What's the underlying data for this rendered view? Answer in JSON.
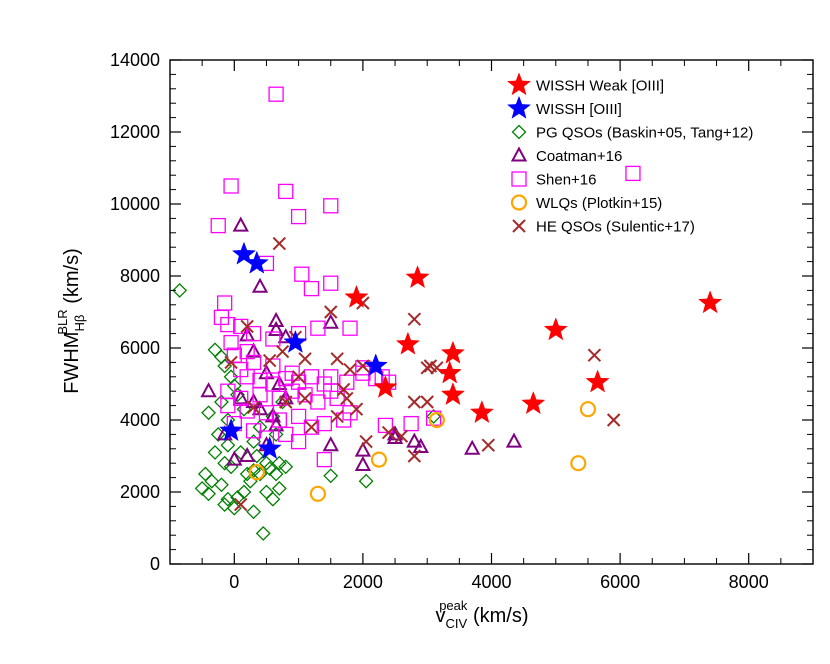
{
  "chart_data": {
    "type": "scatter",
    "title": "",
    "xlabel": {
      "main": "v",
      "sub": "CIV",
      "sup": "peak",
      "unit": " (km/s)"
    },
    "ylabel": {
      "main": "FWHM",
      "sub": "Hβ",
      "sup": "BLR",
      "unit": " (km/s)"
    },
    "xlim": [
      -1000,
      9000
    ],
    "ylim": [
      0,
      14000
    ],
    "xticks": [
      0,
      2000,
      4000,
      6000,
      8000
    ],
    "yticks": [
      0,
      2000,
      4000,
      6000,
      8000,
      10000,
      12000,
      14000
    ],
    "legend_position": "top-right",
    "series": [
      {
        "name": "WISSH Weak [OIII]",
        "marker": "star",
        "color": "#ff0000",
        "filled": true,
        "points": [
          [
            1900,
            7400
          ],
          [
            2850,
            7950
          ],
          [
            2700,
            6100
          ],
          [
            2350,
            4900
          ],
          [
            3400,
            5850
          ],
          [
            3350,
            5300
          ],
          [
            3400,
            4700
          ],
          [
            3850,
            4200
          ],
          [
            4650,
            4450
          ],
          [
            5000,
            6500
          ],
          [
            5650,
            5050
          ],
          [
            7400,
            7250
          ]
        ]
      },
      {
        "name": "WISSH [OIII]",
        "marker": "star",
        "color": "#0000ff",
        "filled": true,
        "points": [
          [
            150,
            8600
          ],
          [
            350,
            8350
          ],
          [
            950,
            6150
          ],
          [
            2200,
            5500
          ],
          [
            -50,
            3700
          ],
          [
            550,
            3200
          ]
        ]
      },
      {
        "name": "PG QSOs (Baskin+05, Tang+12)",
        "marker": "diamond",
        "color": "#008000",
        "filled": false,
        "points": [
          [
            -850,
            7600
          ],
          [
            -300,
            5950
          ],
          [
            -200,
            5750
          ],
          [
            -150,
            5500
          ],
          [
            -50,
            5200
          ],
          [
            0,
            4950
          ],
          [
            50,
            4700
          ],
          [
            -200,
            4500
          ],
          [
            -400,
            4200
          ],
          [
            -250,
            3600
          ],
          [
            -100,
            3300
          ],
          [
            -300,
            3100
          ],
          [
            -150,
            2800
          ],
          [
            -50,
            2700
          ],
          [
            -450,
            2500
          ],
          [
            -350,
            2300
          ],
          [
            -200,
            2200
          ],
          [
            -500,
            2100
          ],
          [
            -400,
            1950
          ],
          [
            -100,
            1800
          ],
          [
            -150,
            1650
          ],
          [
            0,
            1550
          ],
          [
            50,
            1850
          ],
          [
            150,
            2000
          ],
          [
            250,
            2300
          ],
          [
            300,
            2600
          ],
          [
            400,
            2500
          ],
          [
            350,
            3000
          ],
          [
            500,
            2800
          ],
          [
            550,
            2650
          ],
          [
            650,
            2500
          ],
          [
            700,
            2800
          ],
          [
            800,
            2700
          ],
          [
            500,
            2000
          ],
          [
            600,
            1800
          ],
          [
            700,
            2100
          ],
          [
            300,
            1450
          ],
          [
            450,
            850
          ],
          [
            200,
            2500
          ],
          [
            100,
            3100
          ],
          [
            300,
            3400
          ],
          [
            400,
            3800
          ],
          [
            600,
            4100
          ],
          [
            750,
            4500
          ],
          [
            650,
            3600
          ],
          [
            150,
            4300
          ],
          [
            -100,
            4000
          ],
          [
            1500,
            2450
          ],
          [
            2050,
            2300
          ],
          [
            3100,
            4100
          ]
        ]
      },
      {
        "name": "Coatman+16",
        "marker": "triangle",
        "color": "#800080",
        "filled": false,
        "points": [
          [
            100,
            9400
          ],
          [
            400,
            7700
          ],
          [
            650,
            6750
          ],
          [
            650,
            6500
          ],
          [
            800,
            6300
          ],
          [
            200,
            6350
          ],
          [
            300,
            5900
          ],
          [
            -400,
            4800
          ],
          [
            100,
            4600
          ],
          [
            500,
            5300
          ],
          [
            700,
            5000
          ],
          [
            800,
            4600
          ],
          [
            300,
            4500
          ],
          [
            600,
            4100
          ],
          [
            650,
            3850
          ],
          [
            500,
            3300
          ],
          [
            -150,
            3600
          ],
          [
            0,
            2900
          ],
          [
            1500,
            3300
          ],
          [
            1500,
            6700
          ],
          [
            2000,
            3150
          ],
          [
            2000,
            2750
          ],
          [
            2500,
            3600
          ],
          [
            2500,
            3500
          ],
          [
            2800,
            3400
          ],
          [
            2900,
            3250
          ],
          [
            3700,
            3200
          ],
          [
            4350,
            3400
          ],
          [
            400,
            4300
          ],
          [
            200,
            3000
          ]
        ]
      },
      {
        "name": "Shen+16",
        "marker": "square",
        "color": "#ff00ff",
        "filled": false,
        "points": [
          [
            650,
            13050
          ],
          [
            -50,
            10500
          ],
          [
            800,
            10350
          ],
          [
            1000,
            9650
          ],
          [
            1500,
            9950
          ],
          [
            -250,
            9400
          ],
          [
            1050,
            8050
          ],
          [
            1500,
            7800
          ],
          [
            -150,
            7250
          ],
          [
            1200,
            7650
          ],
          [
            500,
            8350
          ],
          [
            -200,
            6850
          ],
          [
            -100,
            6650
          ],
          [
            100,
            6600
          ],
          [
            300,
            6400
          ],
          [
            -50,
            6150
          ],
          [
            200,
            5900
          ],
          [
            1000,
            6400
          ],
          [
            1300,
            6550
          ],
          [
            1800,
            6550
          ],
          [
            0,
            5800
          ],
          [
            300,
            5600
          ],
          [
            600,
            5500
          ],
          [
            100,
            5400
          ],
          [
            200,
            5200
          ],
          [
            400,
            5100
          ],
          [
            600,
            5000
          ],
          [
            800,
            5150
          ],
          [
            1000,
            5050
          ],
          [
            1200,
            5200
          ],
          [
            1400,
            5000
          ],
          [
            1500,
            5200
          ],
          [
            1750,
            5050
          ],
          [
            2000,
            5300
          ],
          [
            2300,
            5200
          ],
          [
            2400,
            5050
          ],
          [
            -100,
            4800
          ],
          [
            100,
            4600
          ],
          [
            400,
            4700
          ],
          [
            700,
            4600
          ],
          [
            900,
            4800
          ],
          [
            1100,
            4700
          ],
          [
            1300,
            4500
          ],
          [
            1600,
            4600
          ],
          [
            1800,
            4200
          ],
          [
            -100,
            4400
          ],
          [
            200,
            4250
          ],
          [
            500,
            4200
          ],
          [
            700,
            4000
          ],
          [
            1000,
            4100
          ],
          [
            1200,
            3800
          ],
          [
            1400,
            3900
          ],
          [
            1700,
            4000
          ],
          [
            0,
            3900
          ],
          [
            300,
            3700
          ],
          [
            500,
            3500
          ],
          [
            800,
            3600
          ],
          [
            1000,
            3400
          ],
          [
            1400,
            2900
          ],
          [
            2350,
            3850
          ],
          [
            6200,
            10850
          ],
          [
            3100,
            4050
          ],
          [
            2750,
            3900
          ],
          [
            2200,
            5150
          ],
          [
            2000,
            5450
          ],
          [
            1500,
            4800
          ],
          [
            600,
            6250
          ],
          [
            900,
            5300
          ]
        ]
      },
      {
        "name": "WLQs (Plotkin+15)",
        "marker": "circle",
        "color": "#ffa500",
        "filled": false,
        "points": [
          [
            350,
            2550
          ],
          [
            1300,
            1950
          ],
          [
            2250,
            2900
          ],
          [
            3150,
            4000
          ],
          [
            5500,
            4300
          ],
          [
            5350,
            2800
          ]
        ]
      },
      {
        "name": "HE QSOs (Sulentic+17)",
        "marker": "x",
        "color": "#a52a2a",
        "filled": false,
        "points": [
          [
            700,
            8900
          ],
          [
            200,
            6600
          ],
          [
            550,
            5650
          ],
          [
            750,
            5900
          ],
          [
            950,
            6300
          ],
          [
            1100,
            5700
          ],
          [
            -50,
            5600
          ],
          [
            1000,
            5200
          ],
          [
            1500,
            7000
          ],
          [
            2000,
            7250
          ],
          [
            1600,
            5700
          ],
          [
            1800,
            5400
          ],
          [
            2000,
            5500
          ],
          [
            1700,
            4850
          ],
          [
            1900,
            4300
          ],
          [
            1600,
            4100
          ],
          [
            1750,
            4600
          ],
          [
            2050,
            3400
          ],
          [
            2400,
            3650
          ],
          [
            2600,
            3550
          ],
          [
            2800,
            3000
          ],
          [
            2800,
            6800
          ],
          [
            2800,
            4500
          ],
          [
            3000,
            4500
          ],
          [
            3000,
            5450
          ],
          [
            3050,
            5500
          ],
          [
            3150,
            5450
          ],
          [
            3950,
            3300
          ],
          [
            5600,
            5800
          ],
          [
            5900,
            4000
          ],
          [
            300,
            4350
          ],
          [
            800,
            4500
          ],
          [
            1100,
            4600
          ],
          [
            1200,
            3800
          ],
          [
            100,
            1650
          ]
        ]
      }
    ]
  }
}
